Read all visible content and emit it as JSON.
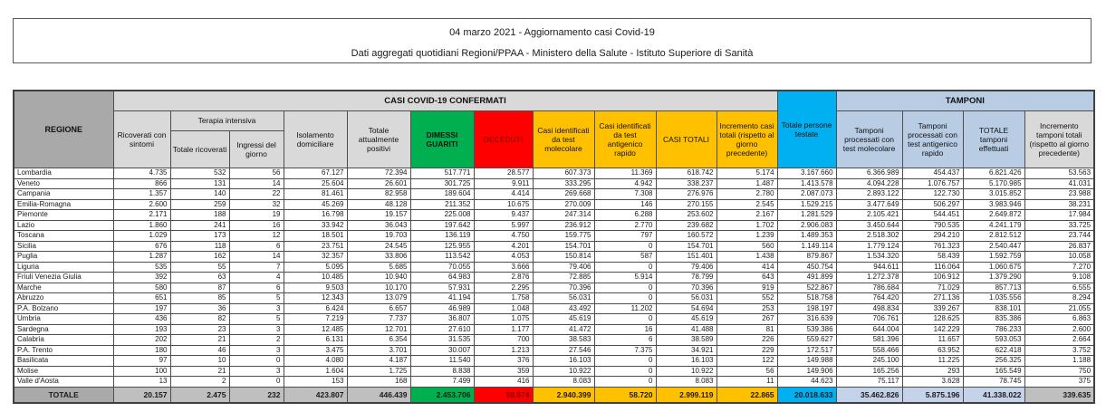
{
  "report": {
    "title_line1": "04 marzo 2021 - Aggiornamento casi Covid-19",
    "title_line2": "Dati aggregati quotidiani Regioni/PPAA - Ministero della Salute - Istituto Superiore di Sanità"
  },
  "colors": {
    "green": "#00B050",
    "red": "#FF0000",
    "yellow": "#FFC000",
    "cyan": "#00B0F0",
    "light_blue": "#B8CCE4",
    "header_gray": "#D9D9D9",
    "region_gray": "#A9A9A9",
    "total_gray": "#BFBFBF"
  },
  "table": {
    "region_header": "REGIONE",
    "groups": {
      "confirmed": "CASI COVID-19 CONFERMATI",
      "terapia": "Terapia intensiva",
      "tamponi": "TAMPONI"
    },
    "columns": [
      "Ricoverati con sintomi",
      "Totale ricoverati",
      "Ingressi del giorno",
      "Isolamento domiciliare",
      "Totale attualmente positivi",
      "DIMESSI GUARITI",
      "DECEDUTI",
      "Casi identificati da test molecolare",
      "Casi identificati da test antigenico rapido",
      "CASI TOTALI",
      "Incremento casi totali (rispetto al giorno precedente)",
      "Totale persone testate",
      "Tamponi processati con test molecolare",
      "Tamponi processati con test antigenico rapido",
      "TOTALE tamponi effettuati",
      "Incremento tamponi totali (rispetto al giorno precedente)"
    ],
    "rows": [
      {
        "region": "Lombardia",
        "values": [
          "4.735",
          "532",
          "56",
          "67.127",
          "72.394",
          "517.771",
          "28.577",
          "607.373",
          "11.369",
          "618.742",
          "5.174",
          "3.167.660",
          "6.366.989",
          "454.437",
          "6.821.426",
          "53.563"
        ]
      },
      {
        "region": "Veneto",
        "values": [
          "866",
          "131",
          "14",
          "25.604",
          "26.601",
          "301.725",
          "9.911",
          "333.295",
          "4.942",
          "338.237",
          "1.487",
          "1.413.578",
          "4.094.228",
          "1.076.757",
          "5.170.985",
          "41.031"
        ]
      },
      {
        "region": "Campania",
        "values": [
          "1.357",
          "140",
          "22",
          "81.461",
          "82.958",
          "189.604",
          "4.414",
          "269.668",
          "7.308",
          "276.976",
          "2.780",
          "2.087.073",
          "2.893.122",
          "122.730",
          "3.015.852",
          "23.988"
        ]
      },
      {
        "region": "Emilia-Romagna",
        "values": [
          "2.600",
          "259",
          "32",
          "45.269",
          "48.128",
          "211.352",
          "10.675",
          "270.009",
          "146",
          "270.155",
          "2.545",
          "1.529.215",
          "3.477.649",
          "506.297",
          "3.983.946",
          "38.231"
        ]
      },
      {
        "region": "Piemonte",
        "values": [
          "2.171",
          "188",
          "19",
          "16.798",
          "19.157",
          "225.008",
          "9.437",
          "247.314",
          "6.288",
          "253.602",
          "2.167",
          "1.281.529",
          "2.105.421",
          "544.451",
          "2.649.872",
          "17.984"
        ]
      },
      {
        "region": "Lazio",
        "values": [
          "1.860",
          "241",
          "16",
          "33.942",
          "36.043",
          "197.642",
          "5.997",
          "236.912",
          "2.770",
          "239.682",
          "1.702",
          "2.906.083",
          "3.450.644",
          "790.535",
          "4.241.179",
          "33.725"
        ]
      },
      {
        "region": "Toscana",
        "values": [
          "1.029",
          "173",
          "12",
          "18.501",
          "19.703",
          "136.119",
          "4.750",
          "159.775",
          "797",
          "160.572",
          "1.239",
          "1.489.353",
          "2.518.302",
          "294.210",
          "2.812.512",
          "23.744"
        ]
      },
      {
        "region": "Sicilia",
        "values": [
          "676",
          "118",
          "6",
          "23.751",
          "24.545",
          "125.955",
          "4.201",
          "154.701",
          "0",
          "154.701",
          "560",
          "1.149.114",
          "1.779.124",
          "761.323",
          "2.540.447",
          "26.837"
        ]
      },
      {
        "region": "Puglia",
        "values": [
          "1.287",
          "162",
          "14",
          "32.357",
          "33.806",
          "113.542",
          "4.053",
          "150.814",
          "587",
          "151.401",
          "1.438",
          "879.867",
          "1.534.320",
          "58.439",
          "1.592.759",
          "10.058"
        ]
      },
      {
        "region": "Liguria",
        "values": [
          "535",
          "55",
          "7",
          "5.095",
          "5.685",
          "70.055",
          "3.666",
          "79.406",
          "0",
          "79.406",
          "414",
          "450.754",
          "944.611",
          "116.064",
          "1.060.675",
          "7.270"
        ]
      },
      {
        "region": "Friuli Venezia Giulia",
        "values": [
          "392",
          "63",
          "4",
          "10.485",
          "10.940",
          "64.983",
          "2.876",
          "72.885",
          "5.914",
          "78.799",
          "643",
          "491.899",
          "1.272.378",
          "106.912",
          "1.379.290",
          "9.108"
        ]
      },
      {
        "region": "Marche",
        "values": [
          "580",
          "87",
          "6",
          "9.503",
          "10.170",
          "57.931",
          "2.295",
          "70.396",
          "0",
          "70.396",
          "919",
          "522.867",
          "786.684",
          "71.029",
          "857.713",
          "6.555"
        ]
      },
      {
        "region": "Abruzzo",
        "values": [
          "651",
          "85",
          "5",
          "12.343",
          "13.079",
          "41.194",
          "1.758",
          "56.031",
          "0",
          "56.031",
          "552",
          "518.758",
          "764.420",
          "271.136",
          "1.035.556",
          "8.294"
        ]
      },
      {
        "region": "P.A. Bolzano",
        "values": [
          "197",
          "36",
          "3",
          "6.424",
          "6.657",
          "46.989",
          "1.048",
          "43.492",
          "11.202",
          "54.694",
          "253",
          "198.197",
          "498.834",
          "339.267",
          "838.101",
          "21.055"
        ]
      },
      {
        "region": "Umbria",
        "values": [
          "436",
          "82",
          "5",
          "7.219",
          "7.737",
          "36.807",
          "1.075",
          "45.619",
          "0",
          "45.619",
          "267",
          "316.639",
          "706.761",
          "128.625",
          "835.386",
          "6.863"
        ]
      },
      {
        "region": "Sardegna",
        "values": [
          "193",
          "23",
          "3",
          "12.485",
          "12.701",
          "27.610",
          "1.177",
          "41.472",
          "16",
          "41.488",
          "81",
          "539.386",
          "644.004",
          "142.229",
          "786.233",
          "2.600"
        ]
      },
      {
        "region": "Calabria",
        "values": [
          "202",
          "21",
          "2",
          "6.131",
          "6.354",
          "31.535",
          "700",
          "38.583",
          "6",
          "38.589",
          "226",
          "559.627",
          "581.396",
          "11.657",
          "593.053",
          "2.664"
        ]
      },
      {
        "region": "P.A. Trento",
        "values": [
          "180",
          "46",
          "3",
          "3.475",
          "3.701",
          "30.007",
          "1.213",
          "27.546",
          "7.375",
          "34.921",
          "229",
          "172.517",
          "558.466",
          "63.952",
          "622.418",
          "3.752"
        ]
      },
      {
        "region": "Basilicata",
        "values": [
          "97",
          "10",
          "0",
          "4.080",
          "4.187",
          "11.540",
          "376",
          "16.103",
          "0",
          "16.103",
          "122",
          "149.988",
          "245.100",
          "11.225",
          "256.325",
          "1.188"
        ]
      },
      {
        "region": "Molise",
        "values": [
          "100",
          "21",
          "3",
          "1.604",
          "1.725",
          "8.838",
          "359",
          "10.922",
          "0",
          "10.922",
          "56",
          "149.906",
          "165.256",
          "293",
          "165.549",
          "750"
        ]
      },
      {
        "region": "Valle d'Aosta",
        "values": [
          "13",
          "2",
          "0",
          "153",
          "168",
          "7.499",
          "416",
          "8.083",
          "0",
          "8.083",
          "11",
          "44.623",
          "75.117",
          "3.628",
          "78.745",
          "375"
        ]
      }
    ],
    "total_row": {
      "region": "TOTALE",
      "values": [
        "20.157",
        "2.475",
        "232",
        "423.807",
        "446.439",
        "2.453.706",
        "98.974",
        "2.940.399",
        "58.720",
        "2.999.119",
        "22.865",
        "20.018.633",
        "35.462.826",
        "5.875.196",
        "41.338.022",
        "339.635"
      ]
    }
  }
}
